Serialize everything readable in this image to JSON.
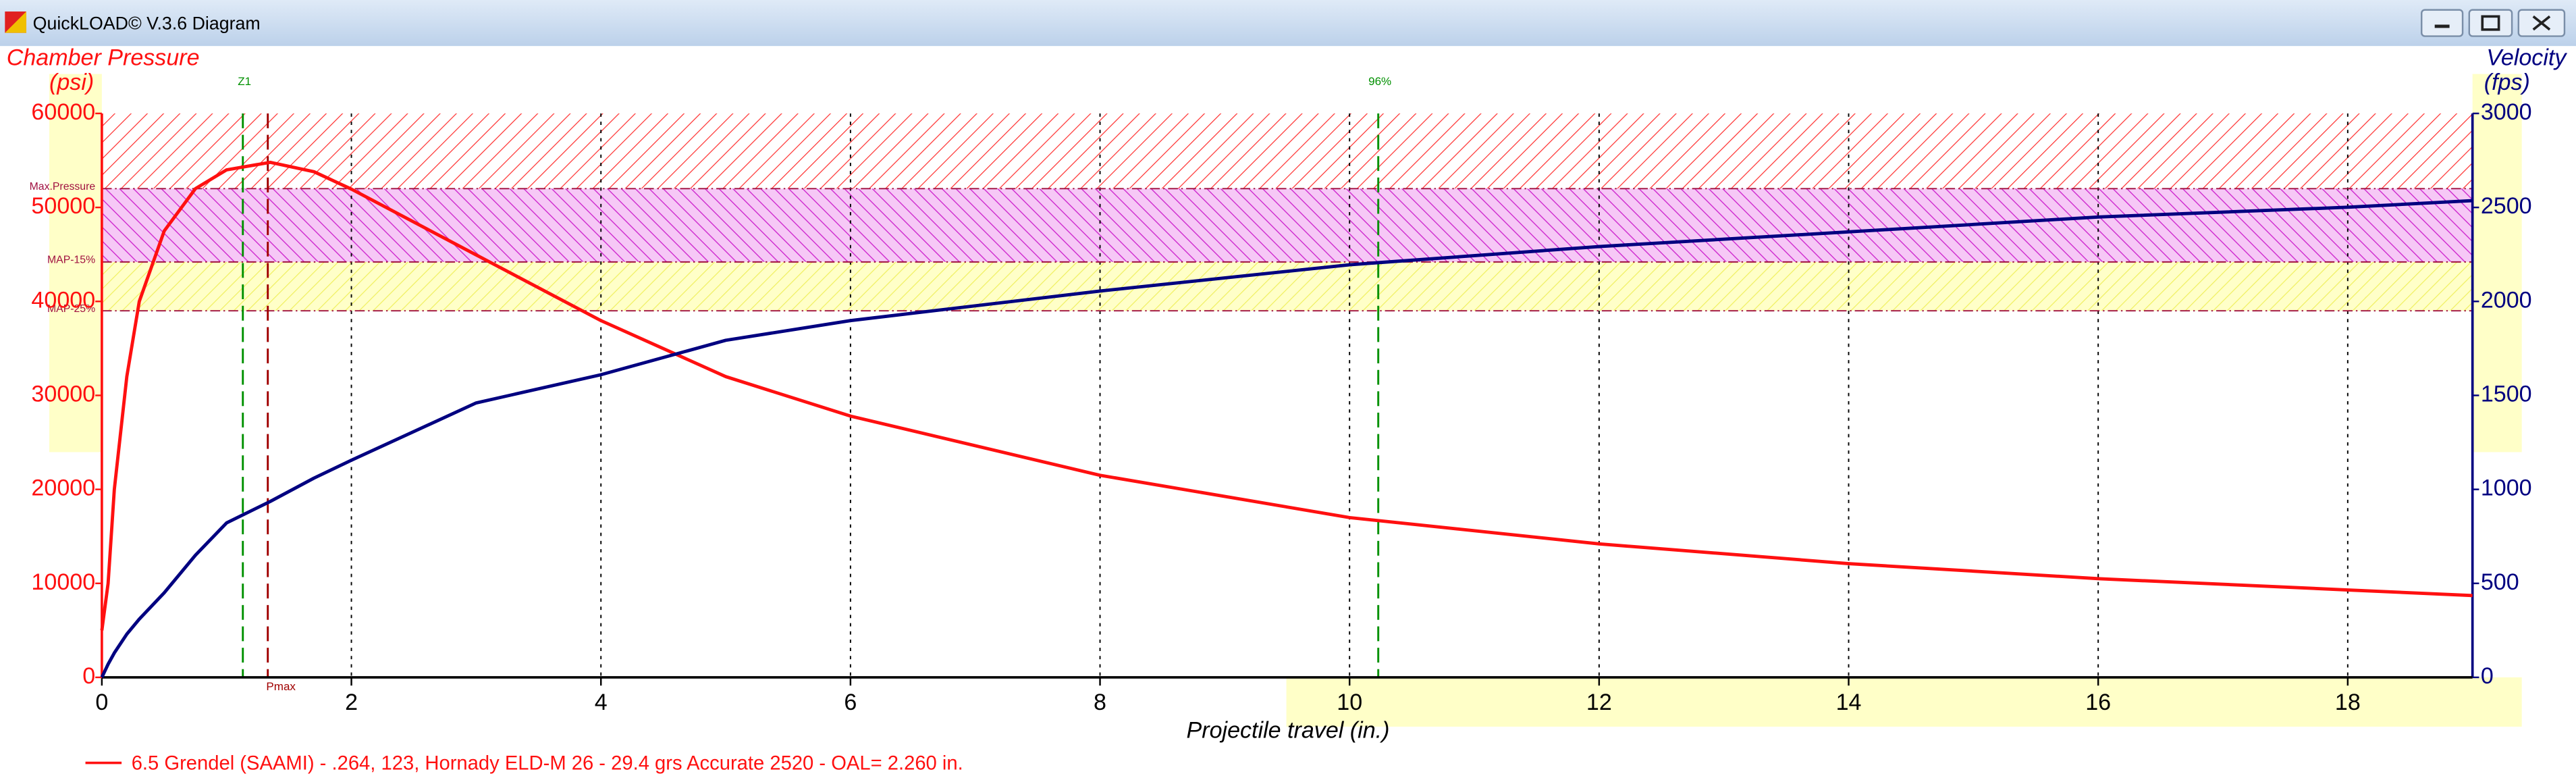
{
  "window_title": "QuickLOAD© V.3.6 Diagram",
  "chart_data": {
    "type": "line",
    "y_title": "Chamber Pressure",
    "y_unit": "(psi)",
    "y2_title": "Velocity",
    "y2_unit": "(fps)",
    "x_title": "Projectile travel (in.)",
    "xlim": [
      0,
      19
    ],
    "xticks": [
      0,
      2,
      4,
      6,
      8,
      10,
      12,
      14,
      16,
      18
    ],
    "ylim": [
      0,
      60000
    ],
    "yticks": [
      0,
      10000,
      20000,
      30000,
      40000,
      50000,
      60000
    ],
    "y2lim": [
      0,
      3000
    ],
    "y2ticks": [
      0,
      500,
      1000,
      1500,
      2000,
      2500,
      3000
    ],
    "grid": true,
    "x": [
      0,
      0.05,
      0.1,
      0.2,
      0.3,
      0.5,
      0.75,
      1,
      1.35,
      1.7,
      2,
      3,
      4,
      5,
      6,
      8,
      10,
      12,
      14,
      16,
      18,
      19
    ],
    "series": [
      {
        "name": "6.5 Grendel  (SAAMI) - .264, 123, Hornady ELD-M 26 - 29.4 grs Accurate 2520 - OAL= 2.260 in.",
        "color": "#ff1010",
        "axis": "y",
        "values": [
          5000,
          10000,
          20000,
          32000,
          40000,
          47500,
          52000,
          54000,
          54800,
          53800,
          51950,
          44950,
          37960,
          32000,
          27800,
          21500,
          17000,
          14200,
          12100,
          10500,
          9300,
          8700
        ]
      },
      {
        "color": "#000080",
        "axis": "y2",
        "values": [
          0,
          70,
          130,
          230,
          310,
          450,
          650,
          822,
          936,
          1060,
          1155,
          1460,
          1610,
          1793,
          1898,
          2055,
          2195,
          2292,
          2370,
          2449,
          2501,
          2536
        ]
      }
    ],
    "limits": [
      {
        "value": 52000,
        "label": "Max.Pressure",
        "band_color": "red"
      },
      {
        "value": 44200,
        "label": "MAP-15%",
        "band_color": "magenta"
      },
      {
        "value": 39000,
        "label": "MAP-25%",
        "band_color": "yellow"
      }
    ],
    "reference_lines": [
      {
        "x": 1.13,
        "label": "Z1",
        "color": "#009000"
      },
      {
        "x": 1.33,
        "label": "Pmax",
        "color": "#a00000"
      },
      {
        "x": 10.23,
        "label": "96%",
        "color": "#009000"
      }
    ]
  }
}
